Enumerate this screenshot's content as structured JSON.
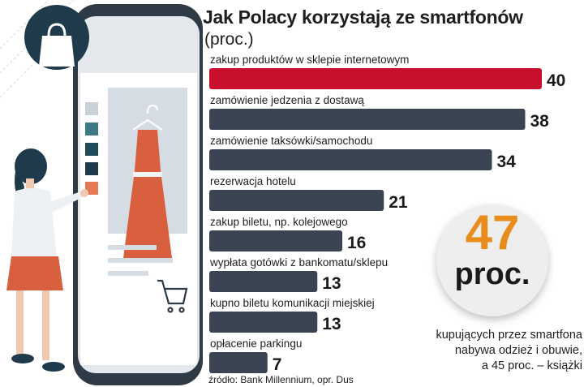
{
  "title": "Jak Polacy korzystają ze smartfonów",
  "subtitle": "(proc.)",
  "colors": {
    "highlight_bar": "#c8102e",
    "bar": "#3b4452",
    "accent": "#e88d1c",
    "dark_teal": "#1f3a4a"
  },
  "chart_data": {
    "type": "bar",
    "orientation": "horizontal",
    "title": "Jak Polacy korzystają ze smartfonów",
    "subtitle": "(proc.)",
    "categories": [
      "zakup produktów w sklepie internetowym",
      "zamówienie jedzenia z dostawą",
      "zamówienie taksówki/samochodu",
      "rezerwacja hotelu",
      "zakup biletu, np. kolejowego",
      "wypłata gotówki z bankomatu/sklepu",
      "kupno biletu komunikacji miejskiej",
      "opłacenie parkingu"
    ],
    "values": [
      40,
      38,
      34,
      21,
      16,
      13,
      13,
      7
    ],
    "highlighted_index": 0,
    "xlim": [
      0,
      40
    ],
    "grid": false,
    "legend": "none"
  },
  "callout": {
    "number": "47",
    "unit": "proc.",
    "lines": [
      "kupujących przez smartfona",
      "nabywa odzież i obuwie,",
      "a 45 proc. – książki"
    ]
  },
  "source": "źródło: Bank Millennium, opr. Dus",
  "icons": {
    "phone": "smartphone-illustration",
    "bag": "shopping-bag-icon",
    "cart": "shopping-cart-icon",
    "person": "woman-figure",
    "dress": "dress-on-hanger"
  }
}
